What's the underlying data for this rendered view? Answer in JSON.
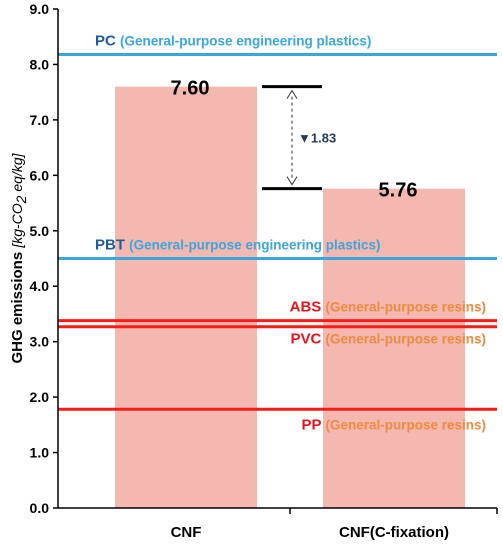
{
  "chart_data": {
    "type": "bar",
    "categories": [
      "CNF",
      "CNF(C-fixation)"
    ],
    "values": [
      7.6,
      5.76
    ],
    "value_labels": [
      "7.60",
      "5.76"
    ],
    "ylim": [
      0,
      9
    ],
    "yticks": [
      "0.0",
      "1.0",
      "2.0",
      "3.0",
      "4.0",
      "5.0",
      "6.0",
      "7.0",
      "8.0",
      "9.0"
    ],
    "ylabel_main": "GHG emissions",
    "ylabel_unit_pre": "[kg-CO",
    "ylabel_unit_sub": "2",
    "ylabel_unit_post": " eq/kg]",
    "bar_color": "#f4b8b0",
    "reference_lines": [
      {
        "name": "PC",
        "desc": "(General-purpose engineering plastics)",
        "value": 8.18,
        "line_color": "#3aa6dc",
        "name_color": "#1f5c99",
        "desc_color": "#3aa6dc",
        "side": "left"
      },
      {
        "name": "PBT",
        "desc": "(General-purpose engineering plastics)",
        "value": 4.5,
        "line_color": "#3aa6dc",
        "name_color": "#1f5c99",
        "desc_color": "#3aa6dc",
        "side": "left"
      },
      {
        "name": "ABS",
        "desc": "(General-purpose resins)",
        "value": 3.38,
        "line_color": "#ff1a1a",
        "name_color": "#e8141c",
        "desc_color": "#f08a3c",
        "side": "right"
      },
      {
        "name": "PVC",
        "desc": "(General-purpose resins)",
        "value": 3.27,
        "line_color": "#ff1a1a",
        "name_color": "#e8141c",
        "desc_color": "#f08a3c",
        "side": "right"
      },
      {
        "name": "PP",
        "desc": "(General-purpose resins)",
        "value": 1.78,
        "line_color": "#ff1a1a",
        "name_color": "#e8141c",
        "desc_color": "#f08a3c",
        "side": "right"
      }
    ],
    "difference": {
      "label": "▼1.83",
      "from": 7.6,
      "to": 5.76
    },
    "grid": false,
    "legend": "none"
  }
}
